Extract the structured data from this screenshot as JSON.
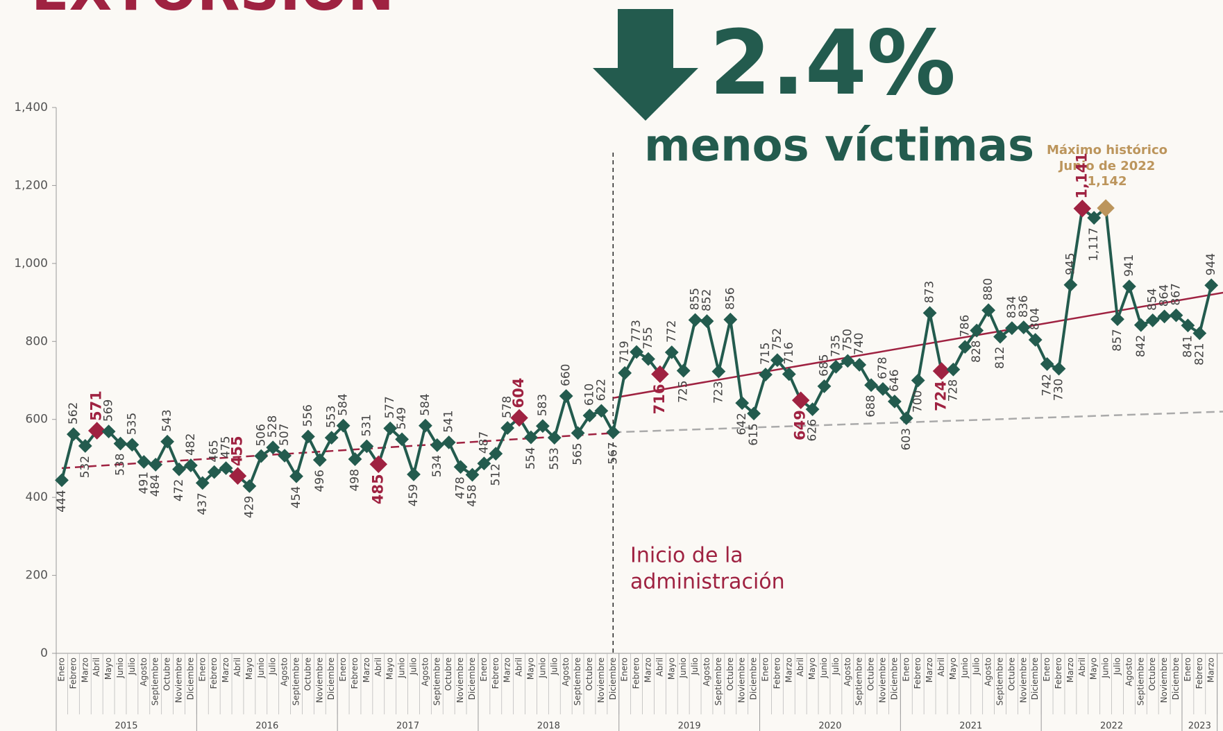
{
  "chart_data": {
    "type": "line",
    "title": "EXTORSIÓN",
    "headline": "2.4%",
    "subheadline": "menos víctimas",
    "annotations": {
      "start": [
        "Inicio de la",
        "administración"
      ],
      "max": [
        "Máximo histórico",
        "Junio de 2022"
      ]
    },
    "categories": [
      "Enero",
      "Febrero",
      "Marzo",
      "Abril",
      "Mayo",
      "Junio",
      "Julio",
      "Agosto",
      "Septiembre",
      "Octubre",
      "Noviembre",
      "Diciembre",
      "Enero",
      "Febrero",
      "Marzo",
      "Abril",
      "Mayo",
      "Junio",
      "Julio",
      "Agosto",
      "Septiembre",
      "Octubre",
      "Noviembre",
      "Diciembre",
      "Enero",
      "Febrero",
      "Marzo",
      "Abril",
      "Mayo",
      "Junio",
      "Julio",
      "Agosto",
      "Septiembre",
      "Octubre",
      "Noviembre",
      "Diciembre",
      "Enero",
      "Febrero",
      "Marzo",
      "Abril",
      "Mayo",
      "Junio",
      "Julio",
      "Agosto",
      "Septiembre",
      "Octubre",
      "Noviembre",
      "Diciembre",
      "Enero",
      "Febrero",
      "Marzo",
      "Abril",
      "Mayo",
      "Junio",
      "Julio",
      "Agosto",
      "Septiembre",
      "Octubre",
      "Noviembre",
      "Diciembre",
      "Enero",
      "Febrero",
      "Marzo",
      "Abril",
      "Mayo",
      "Junio",
      "Julio",
      "Agosto",
      "Septiembre",
      "Octubre",
      "Noviembre",
      "Diciembre",
      "Enero",
      "Febrero",
      "Marzo",
      "Abril",
      "Mayo",
      "Junio",
      "Julio",
      "Agosto",
      "Septiembre",
      "Octubre",
      "Noviembre",
      "Diciembre",
      "Enero",
      "Febrero",
      "Marzo",
      "Abril",
      "Mayo",
      "Junio",
      "Julio",
      "Agosto",
      "Septiembre",
      "Octubre",
      "Noviembre",
      "Diciembre",
      "Enero",
      "Febrero",
      "Marzo"
    ],
    "years": [
      "2015",
      "2016",
      "2017",
      "2018",
      "2019",
      "2020",
      "2021",
      "2022",
      "2023"
    ],
    "values": [
      444,
      562,
      532,
      571,
      569,
      538,
      535,
      491,
      484,
      543,
      472,
      482,
      437,
      465,
      475,
      455,
      429,
      506,
      528,
      507,
      454,
      556,
      496,
      553,
      584,
      498,
      531,
      485,
      577,
      549,
      459,
      584,
      534,
      541,
      478,
      458,
      487,
      512,
      578,
      604,
      554,
      583,
      553,
      660,
      565,
      610,
      622,
      567,
      719,
      773,
      755,
      716,
      772,
      725,
      855,
      852,
      723,
      856,
      642,
      615,
      715,
      752,
      716,
      649,
      626,
      685,
      735,
      750,
      740,
      688,
      678,
      646,
      603,
      700,
      873,
      724,
      728,
      786,
      828,
      880,
      812,
      834,
      836,
      804,
      742,
      730,
      945,
      1141,
      1117,
      1142,
      857,
      941,
      842,
      854,
      864,
      867,
      841,
      821,
      944
    ],
    "value_labels": [
      "444",
      "562",
      "532",
      "571",
      "569",
      "538",
      "535",
      "491",
      "484",
      "543",
      "472",
      "482",
      "437",
      "465",
      "475",
      "455",
      "429",
      "506",
      "528",
      "507",
      "454",
      "556",
      "496",
      "553",
      "584",
      "498",
      "531",
      "485",
      "577",
      "549",
      "459",
      "584",
      "534",
      "541",
      "478",
      "458",
      "487",
      "512",
      "578",
      "604",
      "554",
      "583",
      "553",
      "660",
      "565",
      "610",
      "622",
      "567",
      "719",
      "773",
      "755",
      "716",
      "772",
      "725",
      "855",
      "852",
      "723",
      "856",
      "642",
      "615",
      "715",
      "752",
      "716",
      "649",
      "626",
      "685",
      "735",
      "750",
      "740",
      "688",
      "678",
      "646",
      "603",
      "700",
      "873",
      "724",
      "728",
      "786",
      "828",
      "880",
      "812",
      "834",
      "836",
      "804",
      "742",
      "730",
      "945",
      "1,141",
      "1,117",
      "1,142",
      "857",
      "941",
      "842",
      "854",
      "864",
      "867",
      "841",
      "821",
      "944"
    ],
    "color": "#235b4e",
    "point_colors": [
      "#235b4e",
      "#235b4e",
      "#235b4e",
      "#9f2241",
      "#235b4e",
      "#235b4e",
      "#235b4e",
      "#235b4e",
      "#235b4e",
      "#235b4e",
      "#235b4e",
      "#235b4e",
      "#235b4e",
      "#235b4e",
      "#235b4e",
      "#9f2241",
      "#235b4e",
      "#235b4e",
      "#235b4e",
      "#235b4e",
      "#235b4e",
      "#235b4e",
      "#235b4e",
      "#235b4e",
      "#235b4e",
      "#235b4e",
      "#235b4e",
      "#9f2241",
      "#235b4e",
      "#235b4e",
      "#235b4e",
      "#235b4e",
      "#235b4e",
      "#235b4e",
      "#235b4e",
      "#235b4e",
      "#235b4e",
      "#235b4e",
      "#235b4e",
      "#9f2241",
      "#235b4e",
      "#235b4e",
      "#235b4e",
      "#235b4e",
      "#235b4e",
      "#235b4e",
      "#235b4e",
      "#235b4e",
      "#235b4e",
      "#235b4e",
      "#235b4e",
      "#9f2241",
      "#235b4e",
      "#235b4e",
      "#235b4e",
      "#235b4e",
      "#235b4e",
      "#235b4e",
      "#235b4e",
      "#235b4e",
      "#235b4e",
      "#235b4e",
      "#235b4e",
      "#9f2241",
      "#235b4e",
      "#235b4e",
      "#235b4e",
      "#235b4e",
      "#235b4e",
      "#235b4e",
      "#235b4e",
      "#235b4e",
      "#235b4e",
      "#235b4e",
      "#235b4e",
      "#9f2241",
      "#235b4e",
      "#235b4e",
      "#235b4e",
      "#235b4e",
      "#235b4e",
      "#235b4e",
      "#235b4e",
      "#235b4e",
      "#235b4e",
      "#235b4e",
      "#235b4e",
      "#9f2241",
      "#235b4e",
      "#bc955c",
      "#235b4e",
      "#235b4e",
      "#235b4e",
      "#235b4e",
      "#235b4e",
      "#235b4e",
      "#235b4e",
      "#235b4e",
      "#235b4e"
    ],
    "trends": [
      {
        "color": "#9f2241",
        "dashed": true,
        "values": [
          475,
          565
        ]
      },
      {
        "color": "#aaaaaa",
        "dashed": true,
        "values": [
          567,
          620
        ]
      },
      {
        "color": "#9f2241",
        "dashed": false,
        "values": [
          655,
          925
        ]
      }
    ],
    "ylim": [
      0,
      1400
    ],
    "yticks": [
      0,
      200,
      400,
      600,
      800,
      {
        "value": 1000,
        "label": "1,000"
      },
      {
        "value": 1200,
        "label": "1,200"
      },
      {
        "value": 1400,
        "label": "1,400"
      }
    ]
  }
}
